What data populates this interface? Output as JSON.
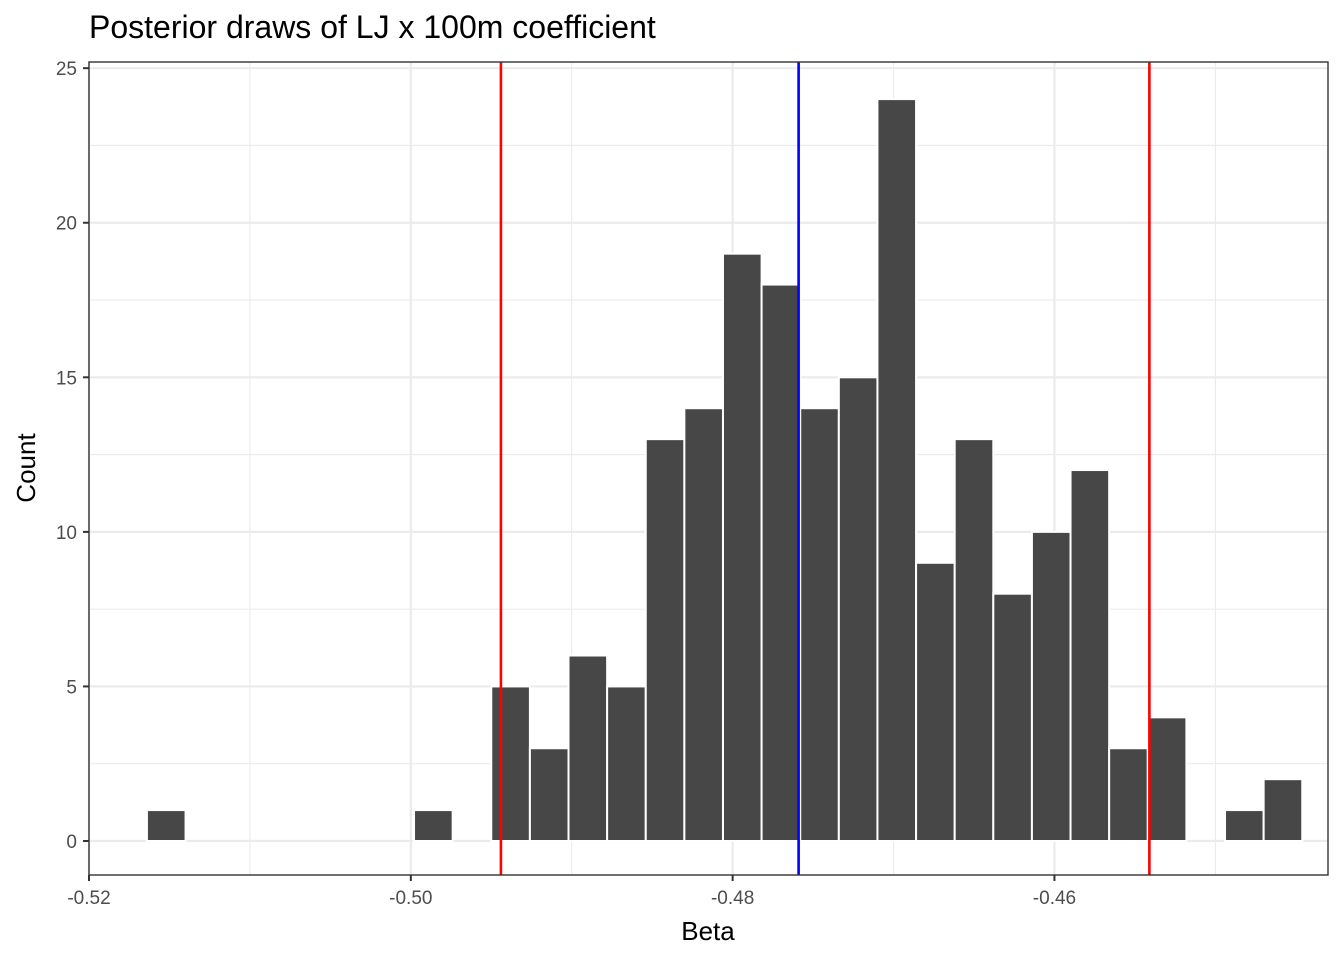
{
  "chart_data": {
    "type": "bar",
    "title": "Posterior draws of LJ x 100m coefficient",
    "xlabel": "Beta",
    "ylabel": "Count",
    "xlim": [
      -0.52,
      -0.443
    ],
    "ylim": [
      -1.1,
      25.2
    ],
    "x_ticks": [
      -0.52,
      -0.5,
      -0.48,
      -0.46
    ],
    "x_tick_labels": [
      "-0.52",
      "-0.50",
      "-0.48",
      "-0.46"
    ],
    "y_ticks": [
      0,
      5,
      10,
      15,
      20,
      25
    ],
    "y_tick_labels": [
      "0",
      "5",
      "10",
      "15",
      "20",
      "25"
    ],
    "bin_width": 0.0024,
    "bins": [
      {
        "x": -0.5152,
        "count": 1
      },
      {
        "x": -0.4986,
        "count": 1
      },
      {
        "x": -0.4938,
        "count": 5
      },
      {
        "x": -0.4914,
        "count": 3
      },
      {
        "x": -0.489,
        "count": 6
      },
      {
        "x": -0.4866,
        "count": 5
      },
      {
        "x": -0.4842,
        "count": 13
      },
      {
        "x": -0.4818,
        "count": 14
      },
      {
        "x": -0.4794,
        "count": 19
      },
      {
        "x": -0.477,
        "count": 18
      },
      {
        "x": -0.4746,
        "count": 14
      },
      {
        "x": -0.4722,
        "count": 15
      },
      {
        "x": -0.4698,
        "count": 24
      },
      {
        "x": -0.4674,
        "count": 9
      },
      {
        "x": -0.465,
        "count": 13
      },
      {
        "x": -0.4626,
        "count": 8
      },
      {
        "x": -0.4602,
        "count": 10
      },
      {
        "x": -0.4578,
        "count": 12
      },
      {
        "x": -0.4554,
        "count": 3
      },
      {
        "x": -0.453,
        "count": 4
      },
      {
        "x": -0.4482,
        "count": 1
      },
      {
        "x": -0.4458,
        "count": 2
      }
    ],
    "reference_lines": [
      {
        "x": -0.4944,
        "color": "#ff0000"
      },
      {
        "x": -0.4759,
        "color": "#0000ff"
      },
      {
        "x": -0.4541,
        "color": "#ff0000"
      }
    ],
    "grid": true,
    "bar_color": "#474747"
  }
}
